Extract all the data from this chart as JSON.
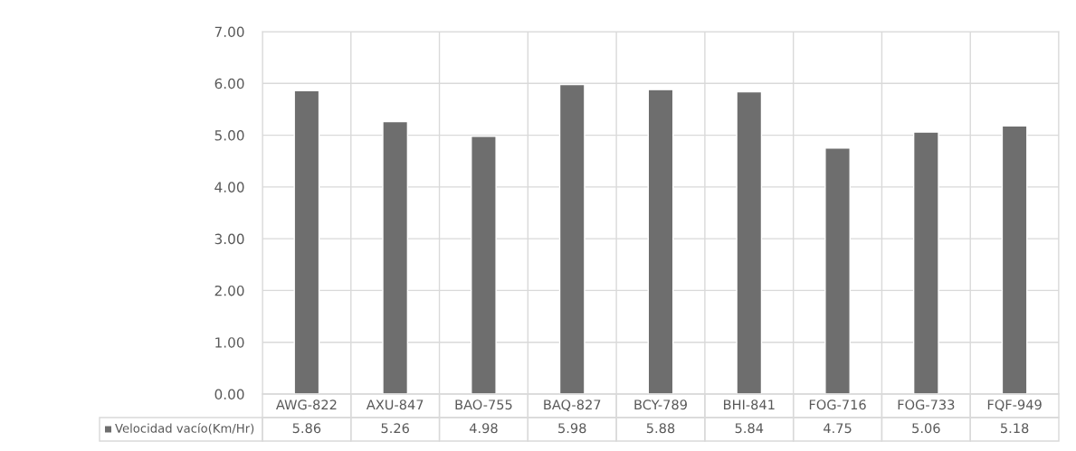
{
  "chart_data": {
    "type": "bar",
    "categories": [
      "AWG-822",
      "AXU-847",
      "BAO-755",
      "BAQ-827",
      "BCY-789",
      "BHI-841",
      "FOG-716",
      "FOG-733",
      "FQF-949"
    ],
    "series": [
      {
        "name": "Velocidad vacío(Km/Hr)",
        "color": "#6e6e6e",
        "values": [
          5.86,
          5.26,
          4.98,
          5.98,
          5.88,
          5.84,
          4.75,
          5.06,
          5.18
        ]
      }
    ],
    "data_labels": true,
    "ylim": [
      0,
      7
    ],
    "yticks": [
      {
        "value": 0,
        "label": "0.00"
      },
      {
        "value": 1,
        "label": "1.00"
      },
      {
        "value": 2,
        "label": "2.00"
      },
      {
        "value": 3,
        "label": "3.00"
      },
      {
        "value": 4,
        "label": "4.00"
      },
      {
        "value": 5,
        "label": "5.00"
      },
      {
        "value": 6,
        "label": "6.00"
      },
      {
        "value": 7,
        "label": "7.00"
      }
    ],
    "grid": true,
    "legend": "bottom"
  }
}
